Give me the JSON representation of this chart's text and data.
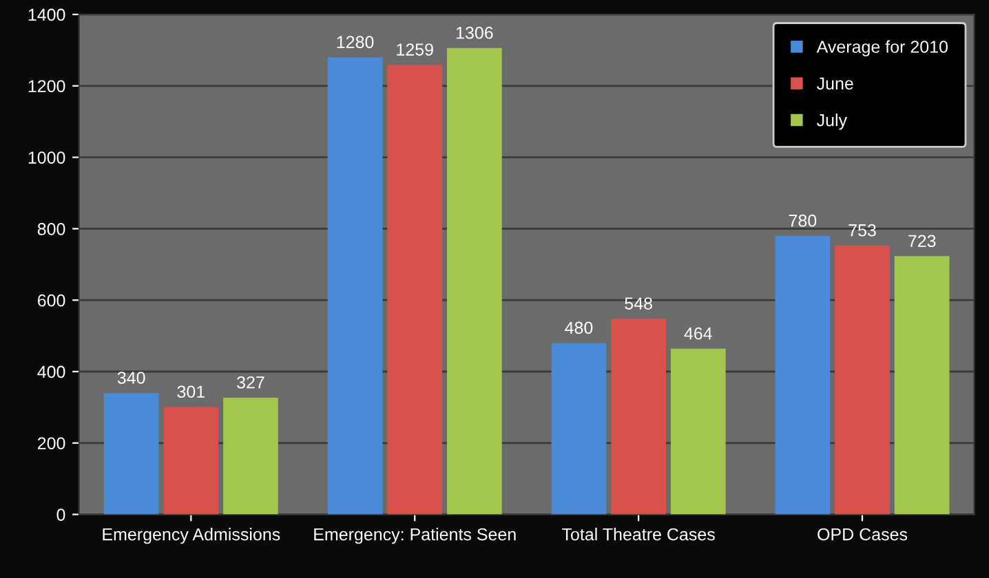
{
  "chart_data": {
    "type": "bar",
    "categories": [
      "Emergency Admissions",
      "Emergency: Patients Seen",
      "Total Theatre Cases",
      "OPD Cases"
    ],
    "series": [
      {
        "name": "Average for 2010",
        "color": "#4a8ad6",
        "values": [
          340,
          1280,
          480,
          780
        ]
      },
      {
        "name": "June",
        "color": "#d9514c",
        "values": [
          301,
          1259,
          548,
          753
        ]
      },
      {
        "name": "July",
        "color": "#a3c64c",
        "values": [
          327,
          1306,
          464,
          723
        ]
      }
    ],
    "ylim": [
      0,
      1400
    ],
    "yticks": [
      0,
      200,
      400,
      600,
      800,
      1000,
      1200,
      1400
    ],
    "grid": "y",
    "legend": "top right",
    "data_labels": true
  }
}
